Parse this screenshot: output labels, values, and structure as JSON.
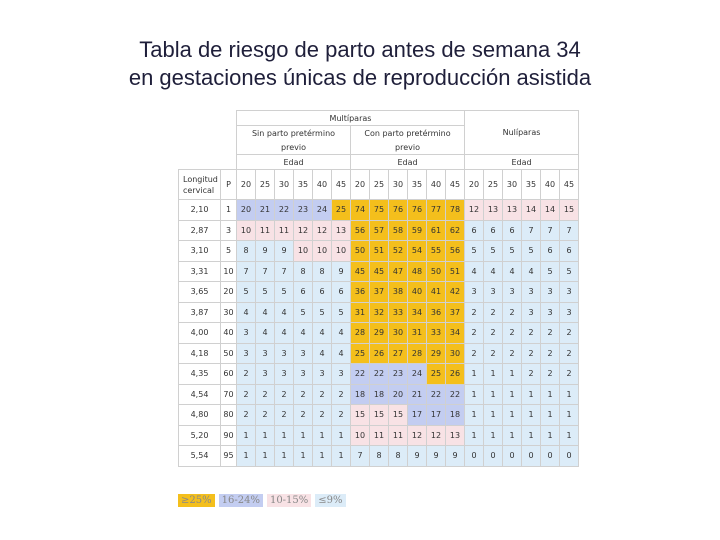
{
  "title": {
    "line1": "Tabla de riesgo de  parto antes de semana 34",
    "line2": "en gestaciones únicas de reproducción asistida"
  },
  "table": {
    "top_header": "Multíparas",
    "group_without": "Sin parto pretérmino",
    "group_with": "Con parto pretérmino",
    "group_nulli": "Nulíparas",
    "previo": "previo",
    "edad": "Edad",
    "length_header_1": "Longitud",
    "length_header_2": "cervical",
    "p_header": "P",
    "ages": [
      "20",
      "25",
      "30",
      "35",
      "40",
      "45"
    ],
    "rows": [
      {
        "length": "2,10",
        "p": "1",
        "values": [
          "20",
          "21",
          "22",
          "23",
          "24",
          "25",
          "74",
          "75",
          "76",
          "76",
          "77",
          "78",
          "12",
          "13",
          "13",
          "14",
          "14",
          "15"
        ]
      },
      {
        "length": "2,87",
        "p": "3",
        "values": [
          "10",
          "11",
          "11",
          "12",
          "12",
          "13",
          "56",
          "57",
          "58",
          "59",
          "61",
          "62",
          "6",
          "6",
          "6",
          "7",
          "7",
          "7"
        ]
      },
      {
        "length": "3,10",
        "p": "5",
        "values": [
          "8",
          "9",
          "9",
          "10",
          "10",
          "10",
          "50",
          "51",
          "52",
          "54",
          "55",
          "56",
          "5",
          "5",
          "5",
          "5",
          "6",
          "6"
        ]
      },
      {
        "length": "3,31",
        "p": "10",
        "values": [
          "7",
          "7",
          "7",
          "8",
          "8",
          "9",
          "45",
          "45",
          "47",
          "48",
          "50",
          "51",
          "4",
          "4",
          "4",
          "4",
          "5",
          "5"
        ]
      },
      {
        "length": "3,65",
        "p": "20",
        "values": [
          "5",
          "5",
          "5",
          "6",
          "6",
          "6",
          "36",
          "37",
          "38",
          "40",
          "41",
          "42",
          "3",
          "3",
          "3",
          "3",
          "3",
          "3"
        ]
      },
      {
        "length": "3,87",
        "p": "30",
        "values": [
          "4",
          "4",
          "4",
          "5",
          "5",
          "5",
          "31",
          "32",
          "33",
          "34",
          "36",
          "37",
          "2",
          "2",
          "2",
          "3",
          "3",
          "3"
        ]
      },
      {
        "length": "4,00",
        "p": "40",
        "values": [
          "3",
          "4",
          "4",
          "4",
          "4",
          "4",
          "28",
          "29",
          "30",
          "31",
          "33",
          "34",
          "2",
          "2",
          "2",
          "2",
          "2",
          "2"
        ]
      },
      {
        "length": "4,18",
        "p": "50",
        "values": [
          "3",
          "3",
          "3",
          "3",
          "4",
          "4",
          "25",
          "26",
          "27",
          "28",
          "29",
          "30",
          "2",
          "2",
          "2",
          "2",
          "2",
          "2"
        ]
      },
      {
        "length": "4,35",
        "p": "60",
        "values": [
          "2",
          "3",
          "3",
          "3",
          "3",
          "3",
          "22",
          "22",
          "23",
          "24",
          "25",
          "26",
          "1",
          "1",
          "1",
          "2",
          "2",
          "2"
        ]
      },
      {
        "length": "4,54",
        "p": "70",
        "values": [
          "2",
          "2",
          "2",
          "2",
          "2",
          "2",
          "18",
          "18",
          "20",
          "21",
          "22",
          "22",
          "1",
          "1",
          "1",
          "1",
          "1",
          "1"
        ]
      },
      {
        "length": "4,80",
        "p": "80",
        "values": [
          "2",
          "2",
          "2",
          "2",
          "2",
          "2",
          "15",
          "15",
          "15",
          "17",
          "17",
          "18",
          "1",
          "1",
          "1",
          "1",
          "1",
          "1"
        ]
      },
      {
        "length": "5,20",
        "p": "90",
        "values": [
          "1",
          "1",
          "1",
          "1",
          "1",
          "1",
          "10",
          "11",
          "11",
          "12",
          "12",
          "13",
          "1",
          "1",
          "1",
          "1",
          "1",
          "1"
        ]
      },
      {
        "length": "5,54",
        "p": "95",
        "values": [
          "1",
          "1",
          "1",
          "1",
          "1",
          "1",
          "7",
          "8",
          "8",
          "9",
          "9",
          "9",
          "0",
          "0",
          "0",
          "0",
          "0",
          "0"
        ]
      }
    ]
  },
  "legend": [
    {
      "label": "≥25%",
      "color": "#f4bf1c"
    },
    {
      "label": "16-24%",
      "color": "#c3cdf1"
    },
    {
      "label": "10-15%",
      "color": "#f8e2e5"
    },
    {
      "label": "≤9%",
      "color": "#dcecf8"
    }
  ]
}
